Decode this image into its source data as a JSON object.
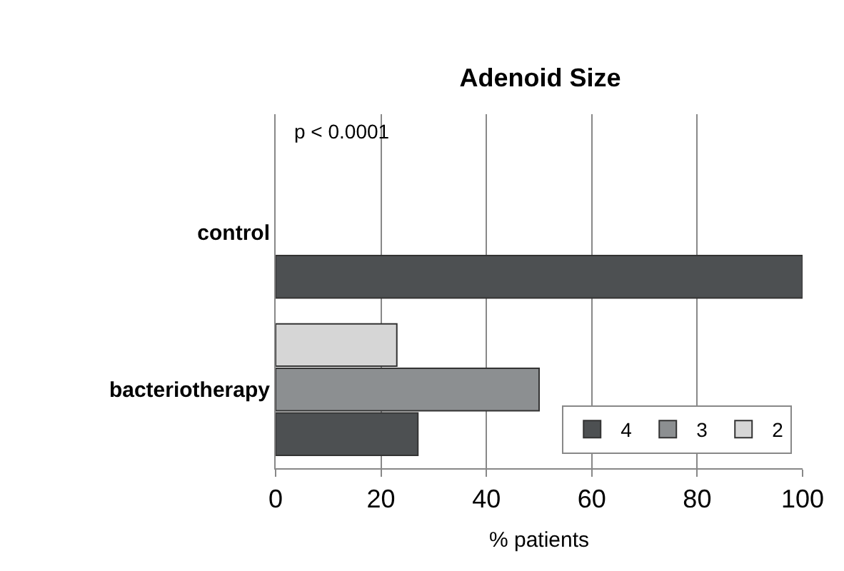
{
  "chart_data": {
    "type": "bar",
    "orientation": "horizontal",
    "title": "Adenoid Size",
    "xlabel": "% patients",
    "categories": [
      "control",
      "bacteriotherapy"
    ],
    "series": [
      {
        "name": "4",
        "color": "#4d5052",
        "values": [
          100,
          27
        ]
      },
      {
        "name": "3",
        "color": "#8c8f91",
        "values": [
          null,
          50
        ]
      },
      {
        "name": "2",
        "color": "#d6d6d6",
        "values": [
          null,
          23
        ]
      }
    ],
    "xlim": [
      0,
      100
    ],
    "xticks": [
      0,
      20,
      40,
      60,
      80,
      100
    ],
    "grid": "x",
    "legend": "bottom right",
    "annotations": [
      "p < 0.0001"
    ]
  }
}
